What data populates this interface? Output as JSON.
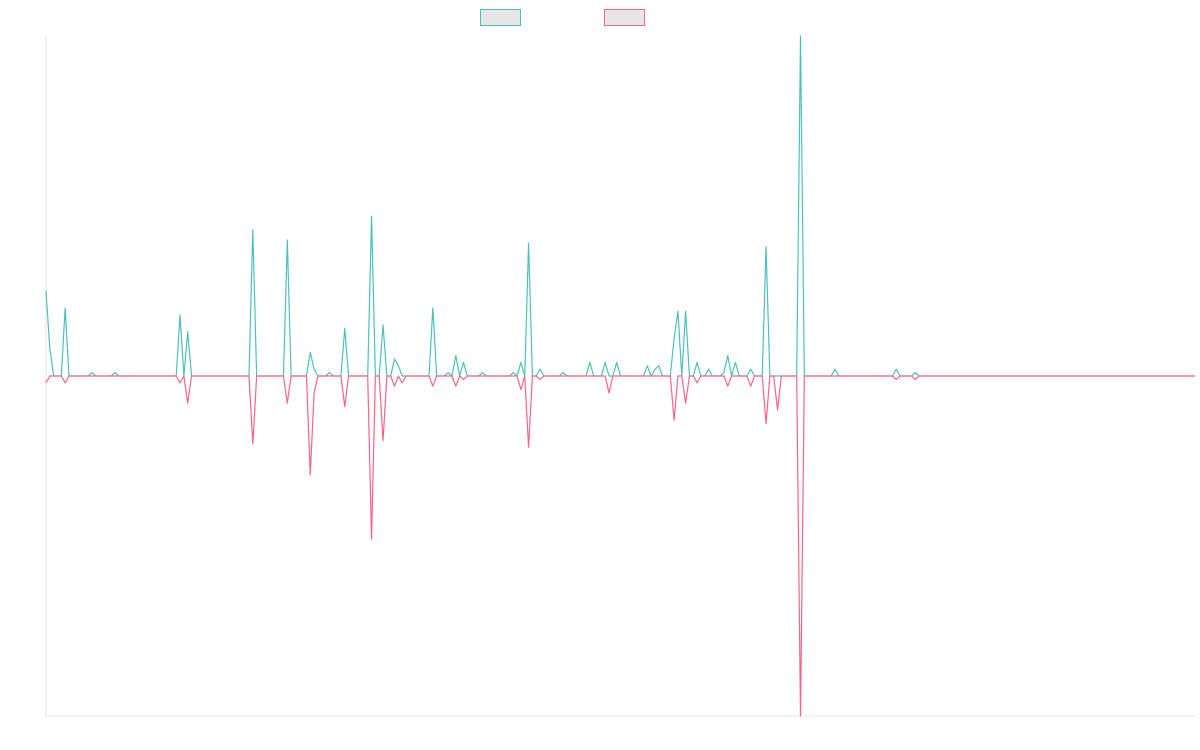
{
  "chart_data": {
    "type": "line",
    "title": "",
    "xlabel": "",
    "ylabel": "",
    "ylim": [
      -100,
      100
    ],
    "grid": false,
    "legend_position": "top-center",
    "x": [
      0,
      1,
      2,
      3,
      4,
      5,
      6,
      7,
      8,
      9,
      10,
      11,
      12,
      13,
      14,
      15,
      16,
      17,
      18,
      19,
      20,
      21,
      22,
      23,
      24,
      25,
      26,
      27,
      28,
      29,
      30,
      31,
      32,
      33,
      34,
      35,
      36,
      37,
      38,
      39,
      40,
      41,
      42,
      43,
      44,
      45,
      46,
      47,
      48,
      49,
      50,
      51,
      52,
      53,
      54,
      55,
      56,
      57,
      58,
      59,
      60,
      61,
      62,
      63,
      64,
      65,
      66,
      67,
      68,
      69,
      70,
      71,
      72,
      73,
      74,
      75,
      76,
      77,
      78,
      79,
      80,
      81,
      82,
      83,
      84,
      85,
      86,
      87,
      88,
      89,
      90,
      91,
      92,
      93,
      94,
      95,
      96,
      97,
      98,
      99,
      100,
      101,
      102,
      103,
      104,
      105,
      106,
      107,
      108,
      109,
      110,
      111,
      112,
      113,
      114,
      115,
      116,
      117,
      118,
      119,
      120,
      121,
      122,
      123,
      124,
      125,
      126,
      127,
      128,
      129,
      130,
      131,
      132,
      133,
      134,
      135,
      136,
      137,
      138,
      139,
      140,
      141,
      142,
      143,
      144,
      145,
      146,
      147,
      148,
      149,
      150,
      151,
      152,
      153,
      154,
      155,
      156,
      157,
      158,
      159,
      160,
      161,
      162,
      163,
      164,
      165,
      166,
      167,
      168,
      169,
      170,
      171,
      172,
      173,
      174,
      175,
      176,
      177,
      178,
      179,
      180,
      181,
      182,
      183,
      184,
      185,
      186,
      187,
      188,
      189,
      190,
      191,
      192,
      193,
      194,
      195,
      196,
      197,
      198,
      199,
      200,
      201,
      202,
      203,
      204,
      205,
      206,
      207,
      208,
      209,
      210,
      211,
      212,
      213,
      214,
      215,
      216,
      217,
      218,
      219,
      220,
      221,
      222,
      223,
      224,
      225,
      226,
      227,
      228,
      229,
      230,
      231,
      232,
      233,
      234,
      235,
      236,
      237,
      238,
      239,
      240,
      241,
      242,
      243,
      244,
      245,
      246,
      247,
      248,
      249,
      250,
      251,
      252,
      253,
      254,
      255,
      256,
      257,
      258,
      259,
      260,
      261,
      262,
      263,
      264,
      265,
      266,
      267,
      268,
      269,
      270,
      271,
      272,
      273,
      274,
      275,
      276,
      277,
      278,
      279,
      280,
      281,
      282,
      283,
      284,
      285,
      286,
      287,
      288,
      289,
      290,
      291,
      292,
      293,
      294,
      295,
      296,
      297,
      298,
      299,
      300
    ],
    "series": [
      {
        "color": "#4bc0c0",
        "fill": "#e6e6e6",
        "values": [
          25,
          8,
          0,
          0,
          0,
          20,
          0,
          0,
          0,
          0,
          0,
          0,
          1,
          0,
          0,
          0,
          0,
          0,
          1,
          0,
          0,
          0,
          0,
          0,
          0,
          0,
          0,
          0,
          0,
          0,
          0,
          0,
          0,
          0,
          0,
          18,
          0,
          13,
          0,
          0,
          0,
          0,
          0,
          0,
          0,
          0,
          0,
          0,
          0,
          0,
          0,
          0,
          0,
          0,
          43,
          0,
          0,
          0,
          0,
          0,
          0,
          0,
          0,
          40,
          0,
          0,
          0,
          0,
          0,
          7,
          2,
          0,
          0,
          0,
          1,
          0,
          0,
          0,
          14,
          0,
          0,
          0,
          0,
          0,
          0,
          47,
          0,
          0,
          15,
          0,
          0,
          5,
          3,
          0,
          0,
          0,
          0,
          0,
          0,
          0,
          0,
          20,
          0,
          0,
          0,
          1,
          0,
          6,
          0,
          4,
          0,
          0,
          0,
          0,
          1,
          0,
          0,
          0,
          0,
          0,
          0,
          0,
          1,
          0,
          4,
          0,
          39,
          0,
          0,
          2,
          0,
          0,
          0,
          0,
          0,
          1,
          0,
          0,
          0,
          0,
          0,
          0,
          4,
          0,
          0,
          0,
          4,
          0,
          0,
          4,
          0,
          0,
          0,
          0,
          0,
          0,
          0,
          3,
          0,
          2,
          3,
          0,
          0,
          0,
          11,
          19,
          0,
          19,
          0,
          0,
          4,
          0,
          0,
          2,
          0,
          0,
          0,
          1,
          6,
          0,
          4,
          0,
          0,
          0,
          2,
          0,
          0,
          0,
          38,
          0,
          0,
          0,
          0,
          0,
          0,
          0,
          0,
          100,
          0,
          0,
          0,
          0,
          0,
          0,
          0,
          0,
          2,
          0,
          0,
          0,
          0,
          0,
          0,
          0,
          0,
          0,
          0,
          0,
          0,
          0,
          0,
          0,
          2,
          0,
          0,
          0,
          0,
          1,
          0,
          0,
          0,
          0,
          0,
          0,
          0,
          0,
          0,
          0,
          0,
          0,
          0,
          0,
          0,
          0,
          0,
          0,
          0,
          0,
          0,
          0,
          0,
          0,
          0,
          0,
          0,
          0,
          0,
          0,
          0,
          0,
          0,
          0,
          0,
          0,
          0,
          0,
          0,
          0,
          0,
          0,
          0,
          0,
          0,
          0,
          0,
          0,
          0,
          0,
          0,
          0,
          0,
          0,
          0,
          0,
          0,
          0,
          0,
          0,
          0,
          0,
          0,
          0,
          0,
          0,
          0,
          0,
          0,
          0,
          0,
          0,
          0
        ]
      },
      {
        "color": "#ff6384",
        "fill": "#e6e6e6",
        "values": [
          -2,
          0,
          0,
          0,
          0,
          -2,
          0,
          0,
          0,
          0,
          0,
          0,
          0,
          0,
          0,
          0,
          0,
          0,
          0,
          0,
          0,
          0,
          0,
          0,
          0,
          0,
          0,
          0,
          0,
          0,
          0,
          0,
          0,
          0,
          0,
          -2,
          0,
          -8,
          0,
          0,
          0,
          0,
          0,
          0,
          0,
          0,
          0,
          0,
          0,
          0,
          0,
          0,
          0,
          0,
          -20,
          0,
          0,
          0,
          0,
          0,
          0,
          0,
          0,
          -8,
          0,
          0,
          0,
          0,
          0,
          -29,
          -5,
          0,
          0,
          0,
          0,
          0,
          0,
          0,
          -9,
          0,
          0,
          0,
          0,
          0,
          0,
          -48,
          0,
          0,
          -19,
          0,
          0,
          -3,
          0,
          -2,
          0,
          0,
          0,
          0,
          0,
          0,
          0,
          -3,
          0,
          0,
          0,
          0,
          0,
          -3,
          0,
          -1,
          0,
          0,
          0,
          0,
          0,
          0,
          0,
          0,
          0,
          0,
          0,
          0,
          0,
          0,
          -4,
          0,
          -21,
          0,
          0,
          -1,
          0,
          0,
          0,
          0,
          0,
          0,
          0,
          0,
          0,
          0,
          0,
          0,
          0,
          0,
          0,
          0,
          0,
          -5,
          0,
          0,
          0,
          0,
          0,
          0,
          0,
          0,
          0,
          0,
          0,
          0,
          0,
          0,
          0,
          0,
          -13,
          0,
          0,
          -8,
          0,
          0,
          -2,
          0,
          0,
          0,
          0,
          0,
          0,
          0,
          -3,
          0,
          0,
          0,
          0,
          0,
          -3,
          0,
          0,
          0,
          -14,
          0,
          0,
          -10,
          0,
          0,
          0,
          0,
          0,
          -100,
          0,
          0,
          0,
          0,
          0,
          0,
          0,
          0,
          0,
          0,
          0,
          0,
          0,
          0,
          0,
          0,
          0,
          0,
          0,
          0,
          0,
          0,
          0,
          0,
          -1,
          0,
          0,
          0,
          0,
          -1,
          0,
          0,
          0,
          0,
          0,
          0,
          0,
          0,
          0,
          0,
          0,
          0,
          0,
          0,
          0,
          0,
          0,
          0,
          0,
          0,
          0,
          0,
          0,
          0,
          0,
          0,
          0,
          0,
          0,
          0,
          0,
          0,
          0,
          0,
          0,
          0,
          0,
          0,
          0,
          0,
          0,
          0,
          0,
          0,
          0,
          0,
          0,
          0,
          0,
          0,
          0,
          0,
          0,
          0,
          0,
          0,
          0,
          0,
          0,
          0,
          0,
          0,
          0,
          0,
          0,
          0,
          0,
          0,
          0,
          0,
          0,
          0,
          0
        ]
      }
    ]
  }
}
